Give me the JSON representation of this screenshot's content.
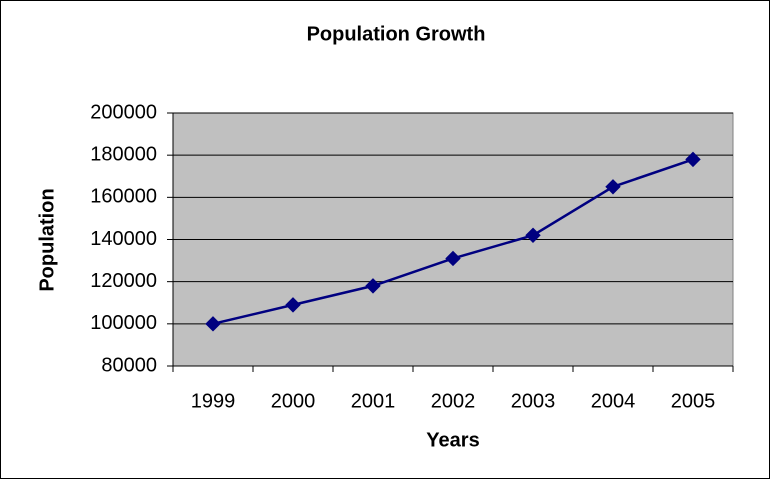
{
  "chart_data": {
    "type": "line",
    "title": "Population Growth",
    "x_label": "Years",
    "y_label": "Population",
    "categories": [
      "1999",
      "2000",
      "2001",
      "2002",
      "2003",
      "2004",
      "2005"
    ],
    "series": [
      {
        "name": "Population",
        "color": "#000080",
        "values": [
          100000,
          109000,
          118000,
          131000,
          142000,
          165000,
          178000
        ]
      }
    ],
    "ylim": [
      80000,
      200000
    ],
    "yticks": [
      80000,
      100000,
      120000,
      140000,
      160000,
      180000,
      200000
    ],
    "grid": true
  }
}
